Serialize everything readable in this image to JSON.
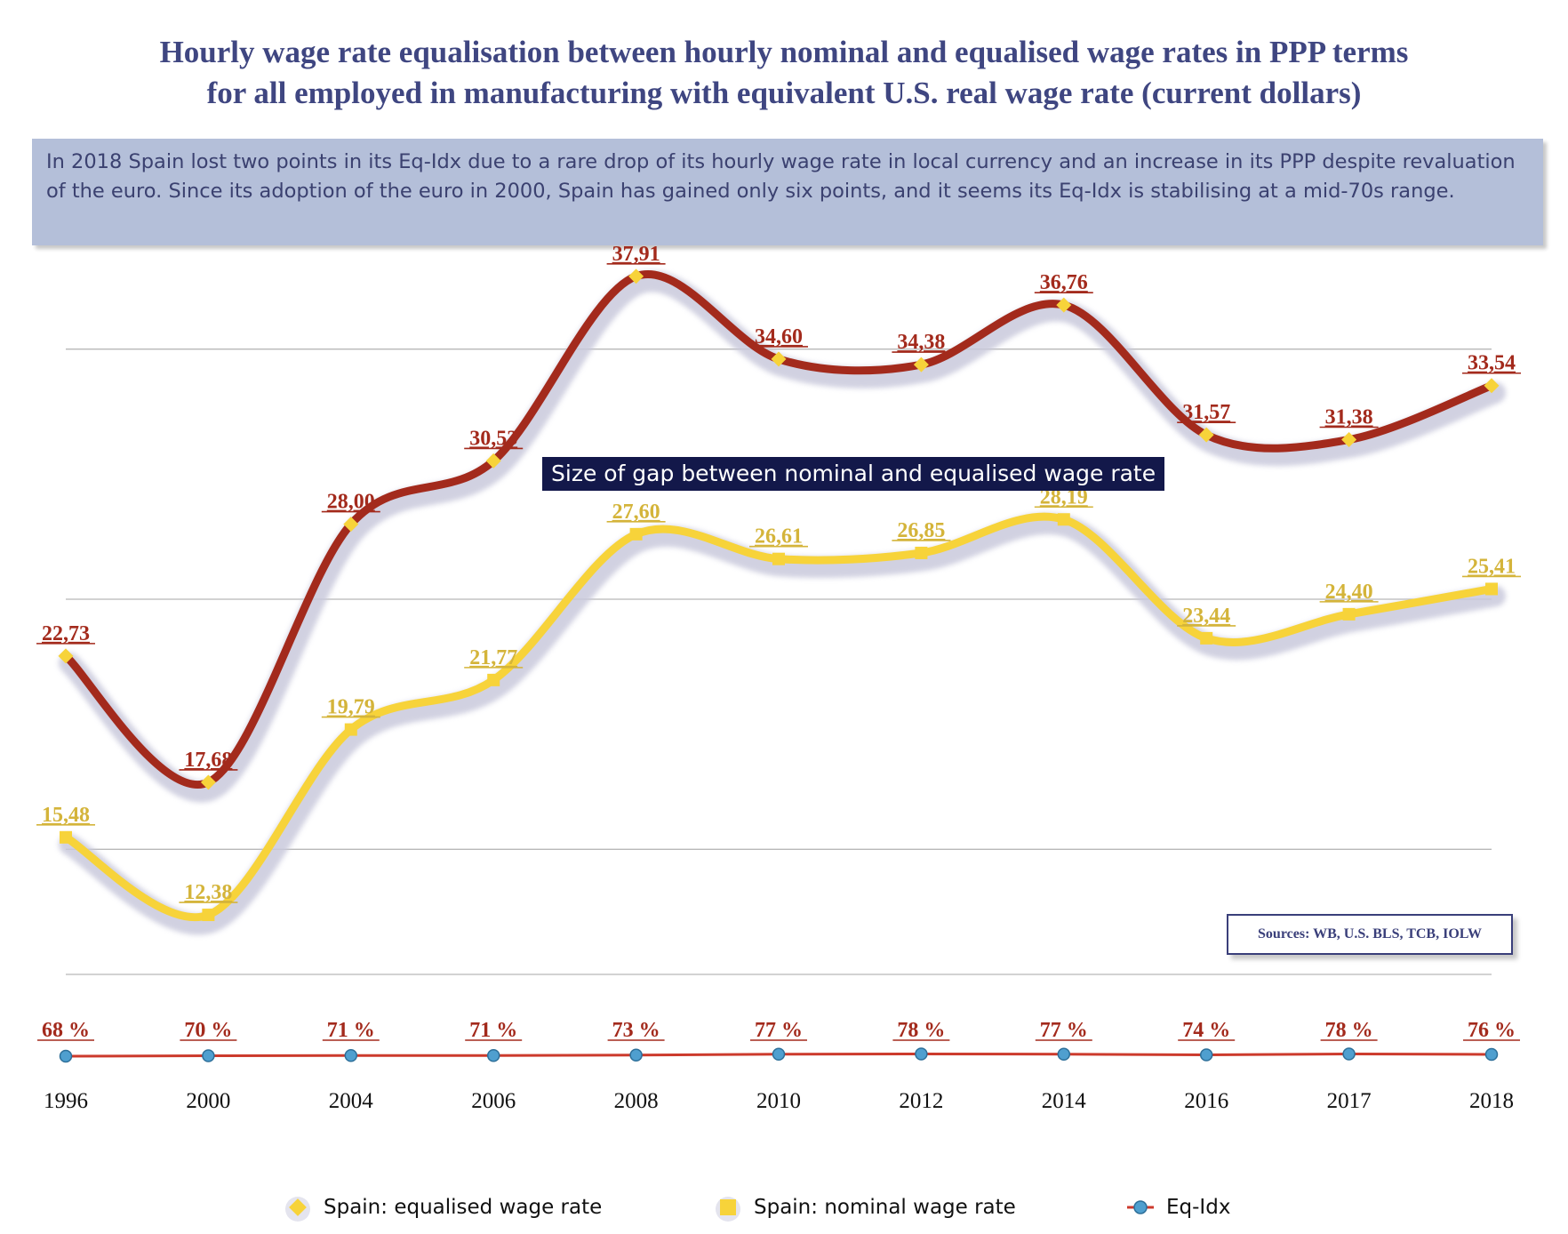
{
  "chart_data": {
    "type": "line",
    "title": [
      "Hourly wage rate equalisation between hourly nominal and equalised wage rates in PPP terms",
      "for all employed in manufacturing with equivalent U.S. real wage rate (current dollars)"
    ],
    "annotation": "In 2018 Spain lost two points in its Eq-Idx due to a rare drop of its hourly wage rate in local currency and an increase in its PPP despite revaluation of the euro. Since its adoption of the euro in 2000, Spain has gained only six points, and it seems its Eq-Idx is stabilising at a mid-70s range.",
    "gap_label": "Size of gap between nominal and equalised wage rate",
    "sources": "Sources: WB, U.S. BLS, TCB, IOLW",
    "categories": [
      "1996",
      "2000",
      "2004",
      "2006",
      "2008",
      "2010",
      "2012",
      "2014",
      "2016",
      "2017",
      "2018"
    ],
    "ylim": [
      10,
      40
    ],
    "gridlines": [
      15,
      25,
      35
    ],
    "series": [
      {
        "name": "Spain: equalised wage rate",
        "values": [
          22.73,
          17.68,
          28.0,
          30.53,
          37.91,
          34.6,
          34.38,
          36.76,
          31.57,
          31.38,
          33.54
        ],
        "labels": [
          "22,73",
          "17,68",
          "28,00",
          "30,53",
          "37,91",
          "34,60",
          "34,38",
          "36,76",
          "31,57",
          "31,38",
          "33,54"
        ],
        "color": "#a32a1c",
        "marker_color": "#f7d33a"
      },
      {
        "name": "Spain: nominal wage rate",
        "values": [
          15.48,
          12.38,
          19.79,
          21.77,
          27.6,
          26.61,
          26.85,
          28.19,
          23.44,
          24.4,
          25.41
        ],
        "labels": [
          "15,48",
          "12,38",
          "19,79",
          "21,77",
          "27,60",
          "26,61",
          "26,85",
          "28,19",
          "23,44",
          "24,40",
          "25,41"
        ],
        "color": "#f7d33a",
        "label_color": "#d4b43a"
      },
      {
        "name": "Eq-Idx",
        "values": [
          68,
          70,
          71,
          71,
          73,
          77,
          78,
          77,
          74,
          78,
          76
        ],
        "labels": [
          "68 %",
          "70 %",
          "71 %",
          "71 %",
          "73 %",
          "77 %",
          "78 %",
          "77 %",
          "74 %",
          "78 %",
          "76 %"
        ],
        "color": "#cc3a2c",
        "marker_color": "#4f9fcf"
      }
    ],
    "legend_position": "bottom"
  }
}
